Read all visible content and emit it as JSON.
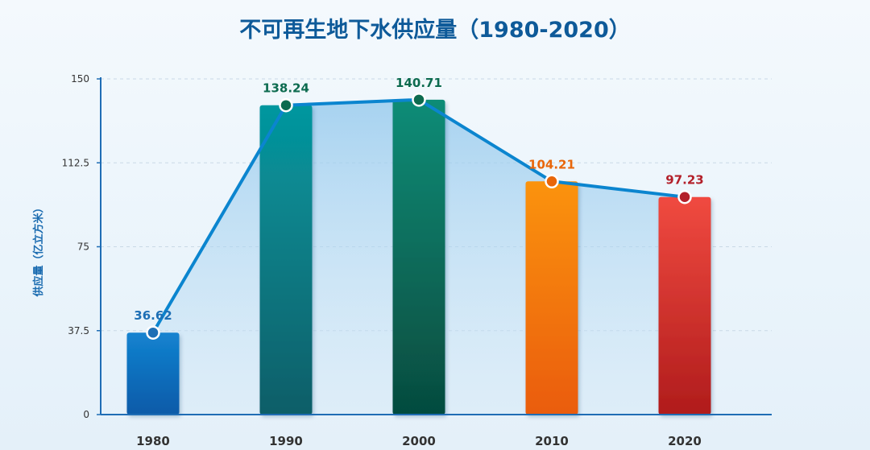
{
  "chart_data": {
    "type": "bar",
    "title": "不可再生地下水供应量（1980-2020）",
    "ylabel": "供应量（亿立方米）",
    "xlabel": "",
    "categories": [
      "1980",
      "1990",
      "2000",
      "2010",
      "2020"
    ],
    "values": [
      36.62,
      138.24,
      140.71,
      104.21,
      97.23
    ],
    "value_labels": [
      "36.62",
      "138.24",
      "140.71",
      "104.21",
      "97.23"
    ],
    "ylim": [
      0,
      150
    ],
    "yticks": [
      0,
      37.5,
      75,
      112.5,
      150
    ],
    "ytick_labels": [
      "0",
      "37.5",
      "75",
      "112.5",
      "150"
    ],
    "grid": "dashed horizontal",
    "overlay_line": true,
    "colors": {
      "bars_top": [
        "#1383d0",
        "#05979f",
        "#0b8c77",
        "#fb9308",
        "#f04a40"
      ],
      "bars_bottom": [
        "#0a5aa8",
        "#0e5e68",
        "#064b3e",
        "#ea5c08",
        "#b01c1c"
      ],
      "labels": [
        "#1e6fb5",
        "#0d6b4f",
        "#0d6b4f",
        "#e8660a",
        "#b3202a"
      ],
      "line": "#0b85cf",
      "axis": "#1f6db5",
      "title": "#0e5a99"
    }
  }
}
